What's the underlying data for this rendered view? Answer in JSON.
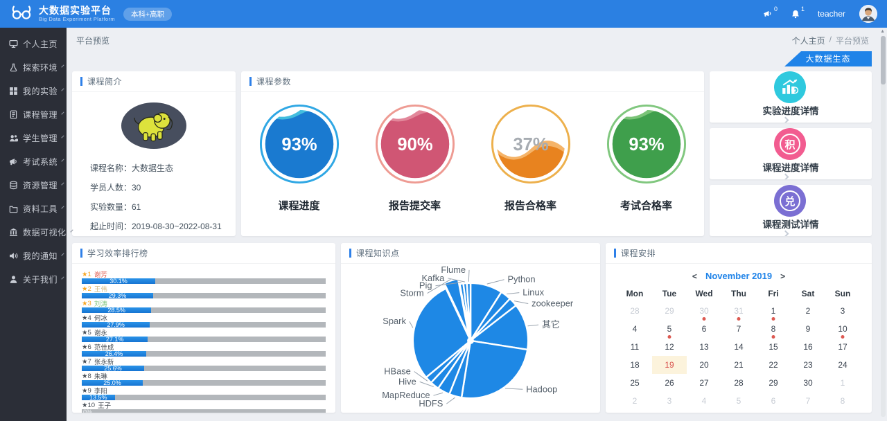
{
  "header": {
    "title": "大数据实验平台",
    "subtitle": "Big Data Experiment Platform",
    "badge": "本科+高职",
    "announce_count": "0",
    "bell_count": "1",
    "username": "teacher"
  },
  "sidebar": {
    "items": [
      {
        "label": "个人主页",
        "icon": "home",
        "expandable": false
      },
      {
        "label": "探索环境",
        "icon": "explore",
        "expandable": true
      },
      {
        "label": "我的实验",
        "icon": "experiments",
        "expandable": true
      },
      {
        "label": "课程管理",
        "icon": "courses",
        "expandable": true
      },
      {
        "label": "学生管理",
        "icon": "students",
        "expandable": true
      },
      {
        "label": "考试系统",
        "icon": "exam",
        "expandable": true
      },
      {
        "label": "资源管理",
        "icon": "resources",
        "expandable": true
      },
      {
        "label": "资料工具",
        "icon": "tools",
        "expandable": true
      },
      {
        "label": "数据可视化",
        "icon": "dataviz",
        "expandable": true
      },
      {
        "label": "我的通知",
        "icon": "notice",
        "expandable": true
      },
      {
        "label": "关于我们",
        "icon": "about",
        "expandable": true
      }
    ]
  },
  "breadcrumb": {
    "page": "平台预览",
    "parent": "个人主页",
    "separator": "/",
    "current": "平台预览"
  },
  "ribbon": {
    "label": "大数据生态"
  },
  "course_intro": {
    "title": "课程简介",
    "separator": "：",
    "fields": [
      {
        "label": "课程名称",
        "value": "大数据生态"
      },
      {
        "label": "学员人数",
        "value": "30"
      },
      {
        "label": "实验数量",
        "value": "61"
      },
      {
        "label": "起止时间",
        "value": "2019-08-30~2022-08-31"
      }
    ]
  },
  "course_params": {
    "title": "课程参数"
  },
  "detail_cards": [
    {
      "label": "实验进度详情",
      "icon": "bar-chart",
      "color": "#2fc9de"
    },
    {
      "label": "课程进度详情",
      "icon": "积",
      "color": "#f25c90"
    },
    {
      "label": "课程测试详情",
      "icon": "兑",
      "color": "#7b6fd3"
    }
  ],
  "ranking": {
    "title": "学习效率排行榜",
    "star_char": "★"
  },
  "knowledge": {
    "title": "课程知识点"
  },
  "schedule": {
    "title": "课程安排",
    "calendar": {
      "nav_prev": "<",
      "nav_next": ">",
      "month_label": "November 2019",
      "day_headers": [
        "Mon",
        "Tue",
        "Wed",
        "Thu",
        "Fri",
        "Sat",
        "Sun"
      ],
      "weeks": [
        [
          {
            "d": "28",
            "muted": true
          },
          {
            "d": "29",
            "muted": true
          },
          {
            "d": "30",
            "muted": true,
            "dot": true
          },
          {
            "d": "31",
            "muted": true,
            "dot": true
          },
          {
            "d": "1",
            "dot": true
          },
          {
            "d": "2"
          },
          {
            "d": "3"
          }
        ],
        [
          {
            "d": "4"
          },
          {
            "d": "5",
            "dot": true
          },
          {
            "d": "6"
          },
          {
            "d": "7"
          },
          {
            "d": "8",
            "dot": true
          },
          {
            "d": "9"
          },
          {
            "d": "10",
            "dot": true
          }
        ],
        [
          {
            "d": "11"
          },
          {
            "d": "12"
          },
          {
            "d": "13"
          },
          {
            "d": "14"
          },
          {
            "d": "15"
          },
          {
            "d": "16"
          },
          {
            "d": "17"
          }
        ],
        [
          {
            "d": "18"
          },
          {
            "d": "19",
            "today": true
          },
          {
            "d": "20"
          },
          {
            "d": "21"
          },
          {
            "d": "22"
          },
          {
            "d": "23"
          },
          {
            "d": "24"
          }
        ],
        [
          {
            "d": "25"
          },
          {
            "d": "26"
          },
          {
            "d": "27"
          },
          {
            "d": "28"
          },
          {
            "d": "29"
          },
          {
            "d": "30"
          },
          {
            "d": "1",
            "muted": true
          }
        ],
        [
          {
            "d": "2",
            "muted": true
          },
          {
            "d": "3",
            "muted": true
          },
          {
            "d": "4",
            "muted": true
          },
          {
            "d": "5",
            "muted": true
          },
          {
            "d": "6",
            "muted": true
          },
          {
            "d": "7",
            "muted": true
          },
          {
            "d": "8",
            "muted": true
          }
        ]
      ]
    }
  },
  "chart_data": [
    {
      "id": "course-gauges",
      "type": "gauge",
      "title": "课程参数",
      "items": [
        {
          "label": "课程进度",
          "value": 93,
          "display": "93%",
          "ring": "#2fa7e4",
          "fill": "#1a7ad0",
          "wave": "#22b2d8",
          "text_color": "#ffffff"
        },
        {
          "label": "报告提交率",
          "value": 90,
          "display": "90%",
          "ring": "#ee9b93",
          "fill": "#d05674",
          "wave": "#dd7288",
          "text_color": "#ffffff"
        },
        {
          "label": "报告合格率",
          "value": 37,
          "display": "37%",
          "ring": "#edb04c",
          "fill": "#e8831f",
          "wave": "#f3a74f",
          "text_color": "#a7acb2"
        },
        {
          "label": "考试合格率",
          "value": 93,
          "display": "93%",
          "ring": "#80c77e",
          "fill": "#3f9f4c",
          "wave": "#63b95f",
          "text_color": "#ffffff"
        }
      ]
    },
    {
      "id": "efficiency-ranking",
      "type": "bar",
      "orientation": "horizontal",
      "title": "学习效率排行榜",
      "xlim": [
        0,
        100
      ],
      "bar_color": "#1e88e5",
      "track_color": "#b3b7bb",
      "items": [
        {
          "rank": "1",
          "name": "谢芳",
          "value": 30.1,
          "display": "30.1%",
          "name_color": "#e25b4e",
          "star_color": "#f6a623"
        },
        {
          "rank": "2",
          "name": "王伟",
          "value": 29.3,
          "display": "29.3%",
          "name_color": "#cdb57b",
          "star_color": "#f6a623"
        },
        {
          "rank": "3",
          "name": "刘涛",
          "value": 28.5,
          "display": "28.5%",
          "name_color": "#82c77f",
          "star_color": "#f6a623"
        },
        {
          "rank": "4",
          "name": "何冰",
          "value": 27.9,
          "display": "27.9%",
          "name_color": "#454c54",
          "star_color": "#454c54"
        },
        {
          "rank": "5",
          "name": "谢永",
          "value": 27.1,
          "display": "27.1%",
          "name_color": "#454c54",
          "star_color": "#454c54"
        },
        {
          "rank": "6",
          "name": "范佳成",
          "value": 26.4,
          "display": "26.4%",
          "name_color": "#454c54",
          "star_color": "#454c54"
        },
        {
          "rank": "7",
          "name": "张永新",
          "value": 25.6,
          "display": "25.6%",
          "name_color": "#454c54",
          "star_color": "#454c54"
        },
        {
          "rank": "8",
          "name": "朱琳",
          "value": 25.0,
          "display": "25.0%",
          "name_color": "#454c54",
          "star_color": "#454c54"
        },
        {
          "rank": "9",
          "name": "李阳",
          "value": 13.5,
          "display": "13.5%",
          "name_color": "#454c54",
          "star_color": "#454c54"
        },
        {
          "rank": "10",
          "name": "王子",
          "value": 0,
          "display": "0%",
          "name_color": "#454c54",
          "star_color": "#454c54"
        }
      ]
    },
    {
      "id": "knowledge-pie",
      "type": "pie",
      "title": "课程知识点",
      "color": "#1e88e5",
      "clockwise": true,
      "start_angle_deg": 0,
      "labels": [
        "Python",
        "Linux",
        "zookeeper",
        "其它",
        "Hadoop",
        "HDFS",
        "MapReduce",
        "Hive",
        "HBase",
        "Spark",
        "Storm",
        "Pig",
        "Kafka",
        "Flume"
      ],
      "values": [
        9,
        3,
        2.5,
        13,
        25,
        3.5,
        3.5,
        2.5,
        2,
        29,
        4,
        1,
        1,
        1
      ],
      "exploded": "Storm"
    }
  ]
}
